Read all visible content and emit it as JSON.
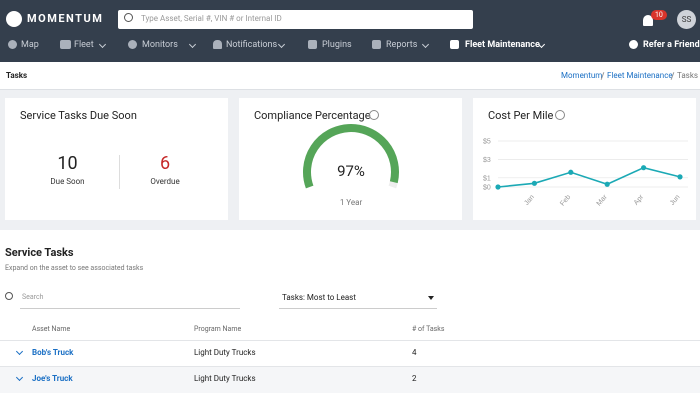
{
  "header": {
    "brand": "MOMENTUM",
    "search_placeholder": "Type Asset, Serial #, VIN # or Internal ID",
    "notification_count": 10,
    "avatar": "SS",
    "nav": [
      "Map",
      "Fleet",
      "Monitors",
      "Notifications",
      "Plugins",
      "Reports",
      "Fleet Maintenance"
    ],
    "refer": "Refer a Friend"
  },
  "page": {
    "title": "Tasks",
    "breadcrumb": [
      "Momentum",
      "Fleet Maintenance",
      "Tasks"
    ]
  },
  "cards": {
    "due_soon": {
      "title": "Service Tasks Due Soon",
      "stats": [
        {
          "value": 10,
          "label": "Due Soon"
        },
        {
          "value": 6,
          "label": "Overdue"
        }
      ]
    },
    "compliance": {
      "title": "Compliance Percentage",
      "value": 97,
      "value_label": "97%",
      "caption": "1 Year"
    },
    "cost_per_mile": {
      "title": "Cost Per Mile",
      "chart_data": {
        "type": "line",
        "color": "#1ba9b5",
        "categories": [
          null,
          "Jan",
          "Feb",
          "Mar",
          "Apr",
          "Jun"
        ],
        "values": [
          0,
          0.4,
          1.6,
          0.3,
          2.1,
          1.1
        ],
        "ylim": [
          0,
          5
        ],
        "yticks": [
          {
            "value": 0,
            "label": "$0"
          },
          {
            "value": 1,
            "label": "$1"
          },
          {
            "value": 3,
            "label": "$3"
          },
          {
            "value": 5,
            "label": "$5"
          }
        ],
        "grid": true
      }
    }
  },
  "service_tasks": {
    "title": "Service Tasks",
    "subtitle": "Expand on the asset to see associated tasks",
    "search_placeholder": "Search",
    "sort": "Tasks: Most to Least",
    "columns": [
      "Asset Name",
      "Program Name",
      "# of Tasks"
    ],
    "rows": [
      [
        "Bob's Truck",
        "Light Duty Trucks",
        4
      ],
      [
        "Joe's Truck",
        "Light Duty Trucks",
        2
      ]
    ]
  }
}
